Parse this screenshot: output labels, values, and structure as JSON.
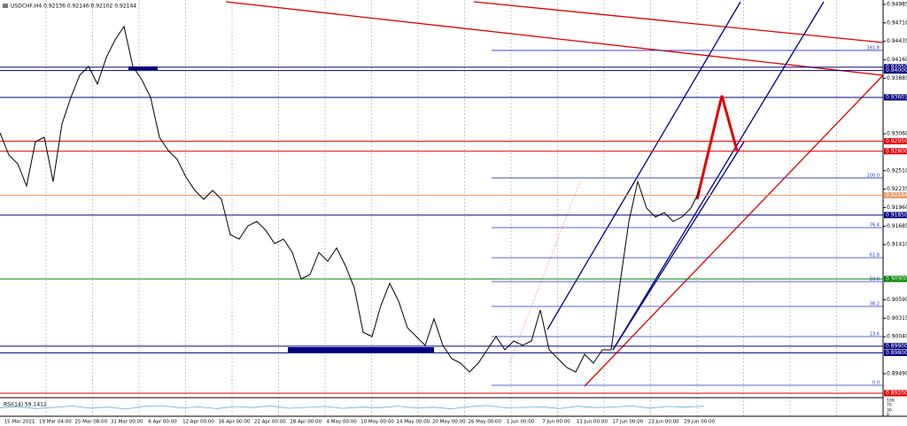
{
  "chart_data": {
    "type": "line",
    "title": "USDCHF,H4  0.92136 0.92146 0.92102 0.92144",
    "ylim": [
      0.8916,
      0.9505
    ],
    "yticks": [
      0.94985,
      {
        "value": 0.9471,
        "label": "0.94710"
      },
      0.94435,
      {
        "value": 0.9416,
        "label": "0.94160"
      },
      0.93885,
      {
        "value": 0.9306,
        "label": "0.93060"
      },
      {
        "value": 0.9251,
        "label": "0.92510"
      },
      0.92235,
      {
        "value": 0.9196,
        "label": "0.91960"
      },
      0.91685,
      {
        "value": 0.9141,
        "label": "0.91410"
      },
      {
        "value": 0.9059,
        "label": "0.90590"
      },
      0.90315,
      {
        "value": 0.9004,
        "label": "0.90040"
      },
      {
        "value": 0.8949,
        "label": "0.89490"
      }
    ],
    "x_labels": [
      "15 Mar 2021",
      "19 Mar 04:00",
      "25 Mar 08:00",
      "31 Mar 00:00",
      "6 Apr 00:00",
      "12 Apr 00:00",
      "16 Apr 00:00",
      "22 Apr 00:00",
      "28 Apr 00:00",
      "4 May 00:00",
      "10 May 00:00",
      "14 May 00:00",
      "20 May 00:00",
      "26 May 00:00",
      "1 Jun 00:00",
      "7 Jun 00:00",
      "11 Jun 00:00",
      "17 Jun 00:00",
      "23 Jun 00:00",
      "29 Jun 00:00"
    ],
    "series": [
      {
        "name": "USDCHF",
        "color": "#000000",
        "values": [
          0.93074,
          0.92744,
          0.92613,
          0.92283,
          0.92942,
          0.93008,
          0.92349,
          0.93206,
          0.93601,
          0.93931,
          0.94062,
          0.93799,
          0.94194,
          0.94458,
          0.94656,
          0.94062,
          0.93865,
          0.93601,
          0.93008,
          0.9281,
          0.92679,
          0.92415,
          0.92217,
          0.92085,
          0.92217,
          0.92085,
          0.91558,
          0.91492,
          0.9169,
          0.91756,
          0.91624,
          0.91426,
          0.91492,
          0.91295,
          0.90899,
          0.90965,
          0.91295,
          0.91163,
          0.91361,
          0.91097,
          0.90767,
          0.90108,
          0.90043,
          0.90504,
          0.90833,
          0.9057,
          0.90174,
          0.90043,
          0.89911,
          0.90306,
          0.89911,
          0.89713,
          0.89647,
          0.89515,
          0.89647,
          0.89845,
          0.90043,
          0.89845,
          0.89977,
          0.89911,
          0.89977,
          0.90438,
          0.89845,
          0.89713,
          0.89581,
          0.89515,
          0.89779,
          0.89647,
          0.89845,
          0.89845,
          0.90833,
          0.91756,
          0.92349,
          0.91954,
          0.91822,
          0.91888,
          0.91756,
          0.91822,
          0.91954,
          0.92217
        ]
      }
    ],
    "levels": [
      {
        "value": 0.9405,
        "label": "0.94050",
        "color": "#000080"
      },
      {
        "value": 0.94,
        "label": "0.94000",
        "color": "#000080"
      },
      {
        "value": 0.93601,
        "label": "0.93601",
        "color": "#000080"
      },
      {
        "value": 0.9295,
        "label": "0.92950",
        "color": "#e00000"
      },
      {
        "value": 0.928,
        "label": "0.92800",
        "color": "#e00000"
      },
      {
        "value": 0.92144,
        "label": "0.92144",
        "color": "#e8a070"
      },
      {
        "value": 0.9185,
        "label": "0.91850",
        "color": "#000080"
      },
      {
        "value": 0.909,
        "label": "0.90900",
        "color": "#008000"
      },
      {
        "value": 0.899,
        "label": "0.89900",
        "color": "#000080"
      },
      {
        "value": 0.898,
        "label": "0.89800",
        "color": "#000080"
      },
      {
        "value": 0.892,
        "label": "0.89200",
        "color": "#e00000"
      }
    ],
    "fib_levels": [
      {
        "value": 0.943,
        "label": "161.8"
      },
      {
        "value": 0.92402,
        "label": "100.0"
      },
      {
        "value": 0.91664,
        "label": "76.4"
      },
      {
        "value": 0.91216,
        "label": "61.8"
      },
      {
        "value": 0.9086,
        "label": "50.0"
      },
      {
        "value": 0.90491,
        "label": "38.2"
      },
      {
        "value": 0.90043,
        "label": "23.6"
      },
      {
        "value": 0.89318,
        "label": "0.0"
      }
    ],
    "rsi": {
      "label": "RSI(14) 59.1412",
      "color": "#5aaee0",
      "ylim": [
        0,
        100
      ],
      "yticks": [
        100,
        70,
        30,
        0
      ],
      "values": [
        48,
        55,
        42,
        50,
        60,
        45,
        52,
        38,
        58,
        62,
        47,
        53,
        41,
        56,
        49,
        61,
        44,
        50,
        57,
        43,
        52,
        48,
        59,
        46,
        51,
        40,
        55,
        63,
        47,
        50,
        54,
        42,
        58,
        49,
        53,
        60,
        45,
        57,
        52,
        59
      ]
    }
  }
}
